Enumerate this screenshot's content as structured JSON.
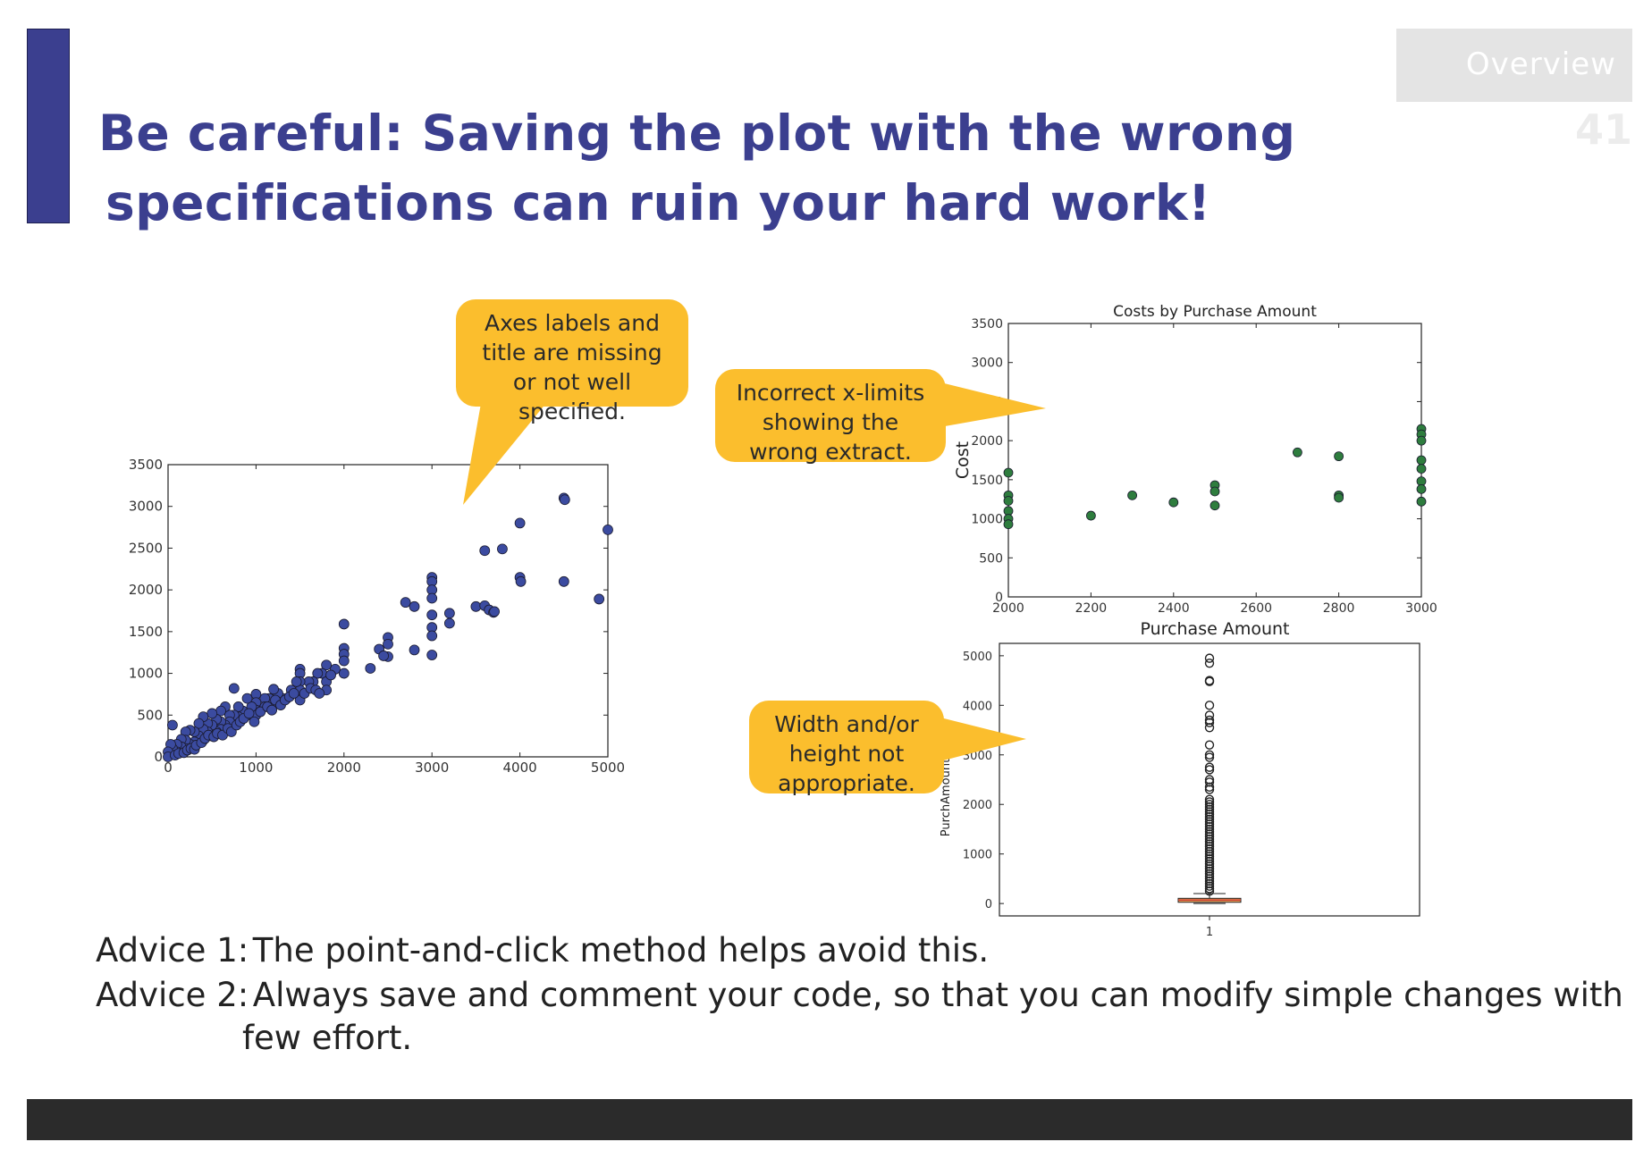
{
  "slide": {
    "title_line1": "Be careful: Saving the plot with the wrong",
    "title_line2": "specifications can ruin your hard work!",
    "section_label": "Overview",
    "page_number": "41"
  },
  "callouts": {
    "axes": "Axes labels and title are missing or not well specified.",
    "xlimits": "Incorrect x-limits showing the wrong extract.",
    "size": "Width and/or height not appropriate."
  },
  "advice": {
    "a1_label": "Advice 1:",
    "a1_text": "The point-and-click method helps avoid this.",
    "a2_label": "Advice 2:",
    "a2_text": "Always save and comment your code, so that you can modify simple changes with",
    "a2_cont": "few effort."
  },
  "colors": {
    "accent": "#3b3f8f",
    "callout": "#fbbe2d",
    "scatter1_point": "#3b4ba0",
    "scatter2_point": "#2e7d3e",
    "box_fill": "#f0a35e",
    "footer": "#2b2b2b"
  },
  "chart_data": [
    {
      "type": "scatter",
      "title": "",
      "xlabel": "",
      "ylabel": "",
      "xlim": [
        0,
        5000
      ],
      "ylim": [
        0,
        3500
      ],
      "xticks": [
        "0",
        "1000",
        "2000",
        "3000",
        "4000",
        "5000"
      ],
      "yticks": [
        "0",
        "500",
        "1000",
        "1500",
        "2000",
        "2500",
        "3000",
        "3500"
      ],
      "series": [
        {
          "points": [
            [
              4500,
              3100
            ],
            [
              4510,
              3080
            ],
            [
              5000,
              2720
            ],
            [
              4000,
              2800
            ],
            [
              3800,
              2490
            ],
            [
              3600,
              2470
            ],
            [
              4000,
              2150
            ],
            [
              4010,
              2100
            ],
            [
              4500,
              2100
            ],
            [
              4900,
              1890
            ],
            [
              3000,
              2150
            ],
            [
              3000,
              2100
            ],
            [
              3000,
              2000
            ],
            [
              3000,
              1900
            ],
            [
              3000,
              1700
            ],
            [
              3000,
              1550
            ],
            [
              3000,
              1450
            ],
            [
              3000,
              1220
            ],
            [
              3200,
              1720
            ],
            [
              3200,
              1600
            ],
            [
              2700,
              1850
            ],
            [
              2800,
              1800
            ],
            [
              2800,
              1280
            ],
            [
              3500,
              1800
            ],
            [
              3600,
              1810
            ],
            [
              3650,
              1760
            ],
            [
              3700,
              1730
            ],
            [
              3710,
              1740
            ],
            [
              2000,
              1590
            ],
            [
              2500,
              1430
            ],
            [
              2500,
              1350
            ],
            [
              2500,
              1200
            ],
            [
              2400,
              1290
            ],
            [
              2450,
              1210
            ],
            [
              2300,
              1060
            ],
            [
              2000,
              1300
            ],
            [
              2000,
              1230
            ],
            [
              2000,
              1150
            ],
            [
              2000,
              1000
            ],
            [
              1900,
              1050
            ],
            [
              1800,
              1100
            ],
            [
              1750,
              1000
            ],
            [
              1800,
              900
            ],
            [
              1800,
              800
            ],
            [
              1700,
              1000
            ],
            [
              1650,
              900
            ],
            [
              1600,
              900
            ],
            [
              1500,
              1050
            ],
            [
              1500,
              1000
            ],
            [
              1500,
              900
            ],
            [
              1500,
              800
            ],
            [
              1500,
              680
            ],
            [
              1400,
              800
            ],
            [
              1350,
              700
            ],
            [
              1300,
              700
            ],
            [
              1250,
              760
            ],
            [
              1200,
              810
            ],
            [
              1200,
              640
            ],
            [
              1150,
              700
            ],
            [
              1100,
              700
            ],
            [
              1100,
              600
            ],
            [
              1000,
              750
            ],
            [
              1000,
              650
            ],
            [
              1000,
              560
            ],
            [
              1000,
              500
            ],
            [
              950,
              600
            ],
            [
              900,
              700
            ],
            [
              900,
              500
            ],
            [
              850,
              550
            ],
            [
              800,
              600
            ],
            [
              800,
              480
            ],
            [
              750,
              820
            ],
            [
              750,
              500
            ],
            [
              700,
              500
            ],
            [
              700,
              420
            ],
            [
              650,
              600
            ],
            [
              650,
              380
            ],
            [
              600,
              550
            ],
            [
              600,
              420
            ],
            [
              600,
              330
            ],
            [
              550,
              450
            ],
            [
              550,
              300
            ],
            [
              500,
              520
            ],
            [
              500,
              380
            ],
            [
              500,
              250
            ],
            [
              450,
              400
            ],
            [
              450,
              300
            ],
            [
              400,
              480
            ],
            [
              400,
              330
            ],
            [
              400,
              200
            ],
            [
              350,
              400
            ],
            [
              350,
              250
            ],
            [
              300,
              300
            ],
            [
              300,
              180
            ],
            [
              250,
              320
            ],
            [
              250,
              150
            ],
            [
              200,
              300
            ],
            [
              200,
              200
            ],
            [
              200,
              100
            ],
            [
              150,
              210
            ],
            [
              150,
              120
            ],
            [
              100,
              150
            ],
            [
              100,
              60
            ],
            [
              50,
              380
            ],
            [
              50,
              100
            ],
            [
              30,
              150
            ],
            [
              20,
              30
            ],
            [
              0,
              60
            ],
            [
              0,
              0
            ],
            [
              80,
              20
            ],
            [
              120,
              40
            ],
            [
              180,
              50
            ],
            [
              220,
              80
            ],
            [
              260,
              100
            ],
            [
              300,
              90
            ],
            [
              320,
              140
            ],
            [
              380,
              170
            ],
            [
              420,
              220
            ],
            [
              460,
              260
            ],
            [
              520,
              240
            ],
            [
              560,
              280
            ],
            [
              620,
              260
            ],
            [
              680,
              340
            ],
            [
              720,
              300
            ],
            [
              780,
              380
            ],
            [
              820,
              420
            ],
            [
              860,
              460
            ],
            [
              920,
              520
            ],
            [
              980,
              420
            ],
            [
              1050,
              540
            ],
            [
              1130,
              600
            ],
            [
              1180,
              560
            ],
            [
              1220,
              680
            ],
            [
              1280,
              620
            ],
            [
              1330,
              680
            ],
            [
              1380,
              720
            ],
            [
              1430,
              760
            ],
            [
              1460,
              900
            ],
            [
              1550,
              760
            ],
            [
              1620,
              820
            ],
            [
              1680,
              800
            ],
            [
              1720,
              760
            ],
            [
              1850,
              980
            ]
          ]
        }
      ]
    },
    {
      "type": "scatter",
      "title": "Costs by Purchase Amount",
      "xlabel": "Purchase Amount",
      "ylabel": "Cost",
      "xlim": [
        2000,
        3000
      ],
      "ylim": [
        0,
        3500
      ],
      "xticks": [
        "2000",
        "2200",
        "2400",
        "2600",
        "2800",
        "3000"
      ],
      "yticks": [
        "0",
        "500",
        "1000",
        "1500",
        "2000",
        "2500",
        "3000",
        "3500"
      ],
      "series": [
        {
          "points": [
            [
              2000,
              1590
            ],
            [
              2000,
              1300
            ],
            [
              2000,
              1230
            ],
            [
              2000,
              1100
            ],
            [
              2000,
              1000
            ],
            [
              2000,
              930
            ],
            [
              2200,
              1040
            ],
            [
              2300,
              1300
            ],
            [
              2400,
              1210
            ],
            [
              2500,
              1430
            ],
            [
              2500,
              1350
            ],
            [
              2500,
              1170
            ],
            [
              2700,
              1850
            ],
            [
              2800,
              1800
            ],
            [
              2800,
              1300
            ],
            [
              2800,
              1270
            ],
            [
              3000,
              2150
            ],
            [
              3000,
              2080
            ],
            [
              3000,
              2000
            ],
            [
              3000,
              1750
            ],
            [
              3000,
              1640
            ],
            [
              3000,
              1480
            ],
            [
              3000,
              1380
            ],
            [
              3000,
              1220
            ]
          ]
        }
      ]
    },
    {
      "type": "box",
      "title": "",
      "xlabel": "",
      "ylabel": "PurchAmount",
      "categories": [
        "1"
      ],
      "ylim": [
        -250,
        5250
      ],
      "yticks": [
        "0",
        "1000",
        "2000",
        "3000",
        "4000",
        "5000"
      ],
      "box": {
        "whisker_low": 0,
        "q1": 25,
        "median": 70,
        "q3": 105,
        "whisker_high": 200
      },
      "outliers": [
        4950,
        4850,
        4500,
        4480,
        4000,
        3800,
        3700,
        3650,
        3550,
        3200,
        3000,
        2950,
        2750,
        2700,
        2500,
        2450,
        2350,
        2300,
        2100,
        2050,
        2000,
        1950,
        1900,
        1850,
        1800,
        1750,
        1700,
        1650,
        1600,
        1550,
        1500,
        1450,
        1400,
        1350,
        1300,
        1250,
        1200,
        1150,
        1100,
        1050,
        1000,
        950,
        900,
        850,
        800,
        750,
        700,
        650,
        600,
        550,
        500,
        450,
        400,
        350,
        300,
        250
      ]
    }
  ]
}
